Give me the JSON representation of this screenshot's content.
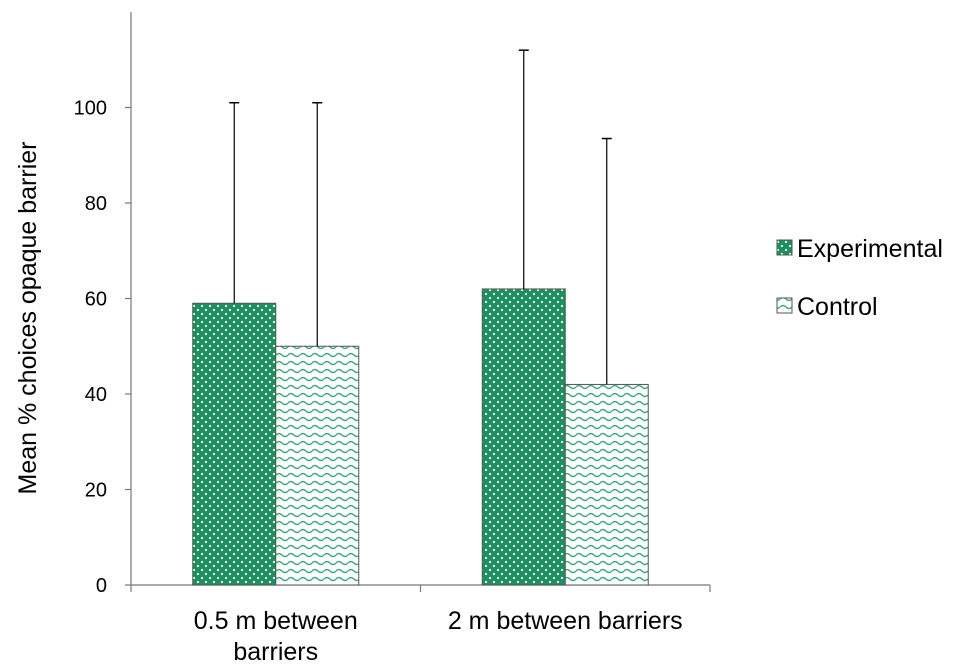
{
  "chart_data": {
    "type": "bar",
    "title": "",
    "xlabel": "",
    "ylabel": "Mean % choices opaque barrier",
    "ylim": [
      0,
      120
    ],
    "yticks": [
      0,
      20,
      40,
      60,
      80,
      100
    ],
    "grid": false,
    "legend_position": "right",
    "categories": [
      "0.5 m between barriers",
      "2 m between barriers"
    ],
    "category_lines": [
      [
        "0.5 m between",
        "barriers"
      ],
      [
        "2 m between barriers"
      ]
    ],
    "series": [
      {
        "name": "Experimental",
        "values": [
          59,
          62
        ],
        "error_upper": [
          101,
          112
        ],
        "color": "#1e9060",
        "pattern": "dots"
      },
      {
        "name": "Control",
        "values": [
          50,
          42
        ],
        "error_upper": [
          101,
          93.5
        ],
        "color": "#3aaa7e",
        "pattern": "waves"
      }
    ]
  }
}
